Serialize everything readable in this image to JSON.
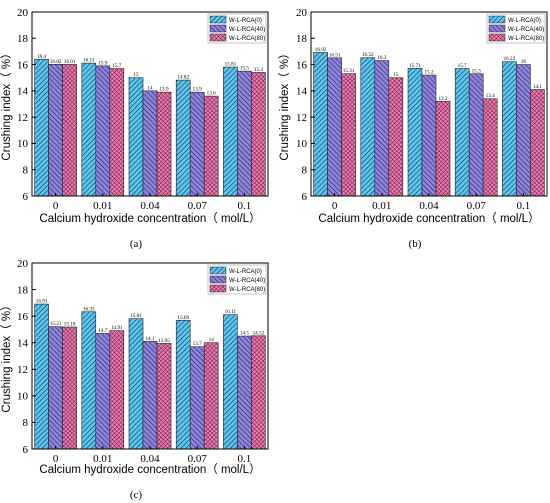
{
  "chart_data": [
    {
      "type": "bar",
      "panel_label": "(a)",
      "categories": [
        "0",
        "0.01",
        "0.04",
        "0.07",
        "0.1"
      ],
      "xlabel": "Calcium hydroxide concentration（ mol/L）",
      "ylabel": "Crushing index（ %）",
      "ylim": [
        6,
        20
      ],
      "yticks": [
        "6",
        "8",
        "10",
        "12",
        "14",
        "16",
        "18",
        "20"
      ],
      "grid": false,
      "legend_position": "top-right",
      "series": [
        {
          "name": "W-L-RCA(0)",
          "values": [
            16.4,
            16.11,
            15,
            14.82,
            15.81
          ],
          "labels": [
            "16.4",
            "16.11",
            "15",
            "14.82",
            "15.81"
          ]
        },
        {
          "name": "W-L-RCA(40)",
          "values": [
            16.02,
            15.9,
            14,
            13.9,
            15.5
          ],
          "labels": [
            "16.02",
            "15.9",
            "14",
            "13.9",
            "15.5"
          ]
        },
        {
          "name": "W-L-RCA(80)",
          "values": [
            16.01,
            15.7,
            13.9,
            13.6,
            15.4
          ],
          "labels": [
            "16.01",
            "15.7",
            "13.9",
            "13.6",
            "15.4"
          ]
        }
      ]
    },
    {
      "type": "bar",
      "panel_label": "(b)",
      "categories": [
        "0",
        "0.01",
        "0.04",
        "0.07",
        "0.1"
      ],
      "xlabel": "Calcium hydroxide concentration（ mol/L）",
      "ylabel": "Crushing index（ %）",
      "ylim": [
        6,
        20
      ],
      "yticks": [
        "6",
        "8",
        "10",
        "12",
        "14",
        "16",
        "18",
        "20"
      ],
      "grid": false,
      "legend_position": "top-right",
      "series": [
        {
          "name": "W-L-RCA(0)",
          "values": [
            16.92,
            16.52,
            15.71,
            15.7,
            16.22
          ],
          "labels": [
            "16.92",
            "16.52",
            "15.71",
            "15.7",
            "16.22"
          ]
        },
        {
          "name": "W-L-RCA(40)",
          "values": [
            16.51,
            16.3,
            15.2,
            15.3,
            16
          ],
          "labels": [
            "16.51",
            "16.3",
            "15.2",
            "15.3",
            "16"
          ]
        },
        {
          "name": "W-L-RCA(80)",
          "values": [
            15.31,
            15,
            13.2,
            13.4,
            14.1
          ],
          "labels": [
            "15.31",
            "15",
            "13.2",
            "13.4",
            "14.1"
          ]
        }
      ]
    },
    {
      "type": "bar",
      "panel_label": "(c)",
      "categories": [
        "0",
        "0.01",
        "0.04",
        "0.07",
        "0.1"
      ],
      "xlabel": "Calcium hydroxide concentration（ mol/L）",
      "ylabel": "Crushing index（ %）",
      "ylim": [
        6,
        20
      ],
      "yticks": [
        "6",
        "8",
        "10",
        "12",
        "14",
        "16",
        "18",
        "20"
      ],
      "grid": false,
      "legend_position": "top-right",
      "series": [
        {
          "name": "W-L-RCA(0)",
          "values": [
            16.91,
            16.33,
            15.81,
            15.69,
            16.11
          ],
          "labels": [
            "16.91",
            "16.33",
            "15.81",
            "15.69",
            "16.11"
          ]
        },
        {
          "name": "W-L-RCA(40)",
          "values": [
            15.21,
            14.7,
            14.1,
            13.7,
            14.5
          ],
          "labels": [
            "15.21",
            "14.7",
            "14.1",
            "13.7",
            "14.5"
          ]
        },
        {
          "name": "W-L-RCA(80)",
          "values": [
            15.18,
            14.91,
            13.95,
            14,
            14.52
          ],
          "labels": [
            "15.18",
            "14.91",
            "13.95",
            "14",
            "14.52"
          ]
        }
      ]
    }
  ]
}
